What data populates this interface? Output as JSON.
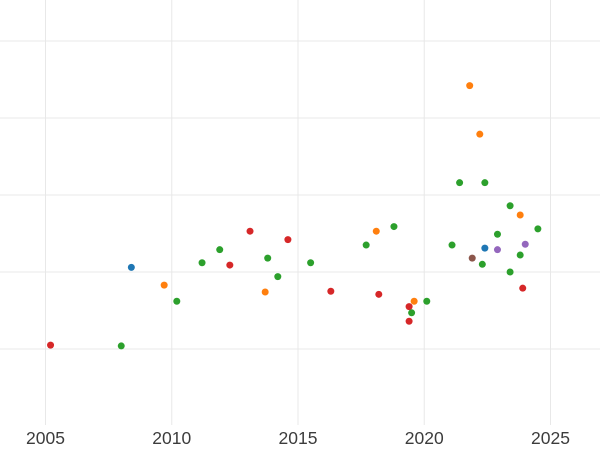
{
  "chart_data": {
    "type": "scatter",
    "title": "",
    "xlabel": "",
    "ylabel": "",
    "legend": "none",
    "grid": true,
    "x_range": [
      2003.2,
      2027.0
    ],
    "y_range": [
      -0.31,
      5.53
    ],
    "x_ticks": [
      {
        "value": 2005,
        "label": "2005"
      },
      {
        "value": 2010,
        "label": "2010"
      },
      {
        "value": 2015,
        "label": "2015"
      },
      {
        "value": 2020,
        "label": "2020"
      },
      {
        "value": 2025,
        "label": "2025"
      }
    ],
    "y_gridline_values": [
      1,
      2,
      3,
      4,
      5
    ],
    "series": [
      {
        "name": "red",
        "color": "#d62728",
        "points": [
          [
            2005.2,
            1.05
          ],
          [
            2012.3,
            2.09
          ],
          [
            2013.1,
            2.53
          ],
          [
            2014.6,
            2.42
          ],
          [
            2016.3,
            1.75
          ],
          [
            2018.2,
            1.71
          ],
          [
            2019.4,
            1.55
          ],
          [
            2019.4,
            1.36
          ],
          [
            2023.9,
            1.79
          ]
        ]
      },
      {
        "name": "blue",
        "color": "#1f77b4",
        "points": [
          [
            2008.4,
            2.06
          ],
          [
            2022.4,
            2.31
          ]
        ]
      },
      {
        "name": "orange",
        "color": "#ff7f0e",
        "points": [
          [
            2009.7,
            1.83
          ],
          [
            2013.7,
            1.74
          ],
          [
            2018.1,
            2.53
          ],
          [
            2019.6,
            1.62
          ],
          [
            2021.8,
            4.42
          ],
          [
            2022.2,
            3.79
          ],
          [
            2023.8,
            2.74
          ]
        ]
      },
      {
        "name": "brown",
        "color": "#8c564b",
        "points": [
          [
            2021.9,
            2.18
          ]
        ]
      },
      {
        "name": "green",
        "color": "#2ca02c",
        "points": [
          [
            2008.0,
            1.04
          ],
          [
            2010.2,
            1.62
          ],
          [
            2011.2,
            2.12
          ],
          [
            2011.9,
            2.29
          ],
          [
            2013.8,
            2.18
          ],
          [
            2014.2,
            1.94
          ],
          [
            2015.5,
            2.12
          ],
          [
            2017.7,
            2.35
          ],
          [
            2018.8,
            2.59
          ],
          [
            2019.5,
            1.47
          ],
          [
            2020.1,
            1.62
          ],
          [
            2021.1,
            2.35
          ],
          [
            2021.4,
            3.16
          ],
          [
            2022.3,
            2.1
          ],
          [
            2022.4,
            3.16
          ],
          [
            2022.9,
            2.49
          ],
          [
            2023.4,
            2.86
          ],
          [
            2023.4,
            2.0
          ],
          [
            2023.8,
            2.22
          ],
          [
            2024.5,
            2.56
          ]
        ]
      },
      {
        "name": "purple",
        "color": "#9467bd",
        "points": [
          [
            2022.9,
            2.29
          ],
          [
            2024.0,
            2.36
          ]
        ]
      }
    ],
    "styles": {
      "background": "#ffffff",
      "gridline_color": "#e8e8e8",
      "tick_label_color": "#3c3c3c",
      "tick_font_size": 17.5,
      "point_radius": 3.5
    }
  }
}
